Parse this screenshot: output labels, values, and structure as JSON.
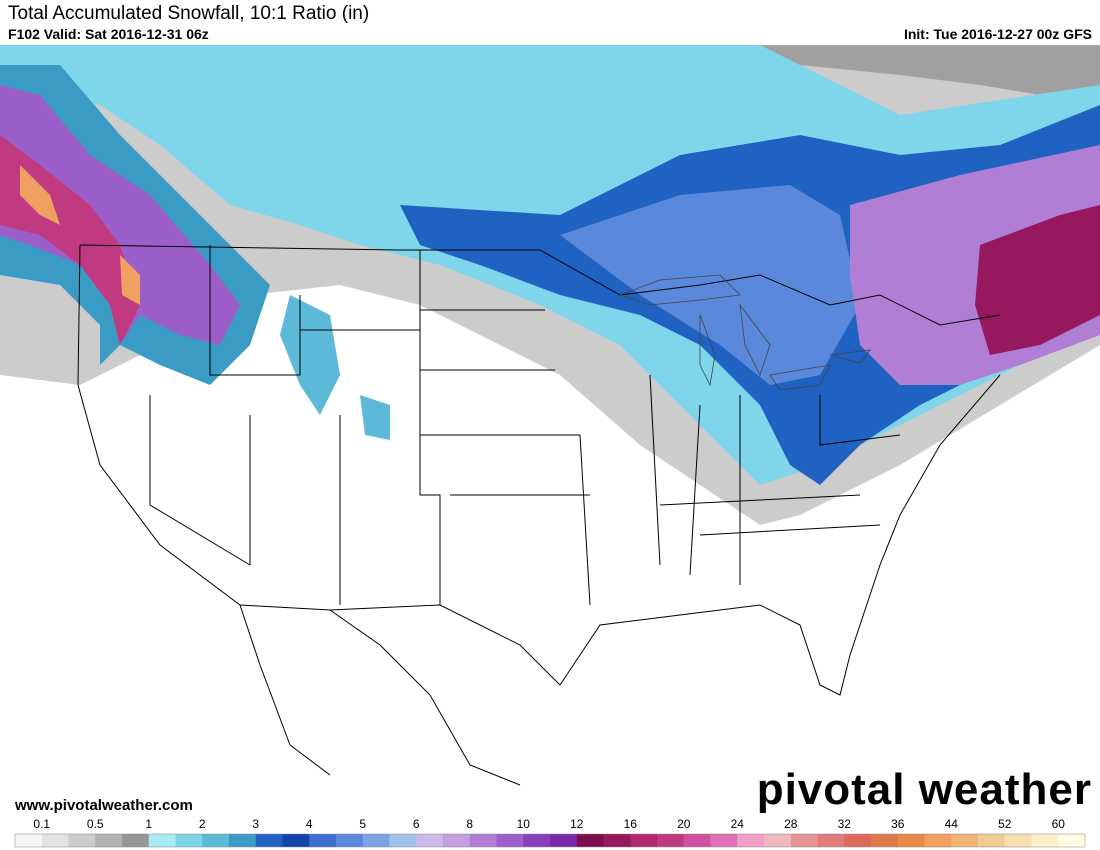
{
  "header": {
    "title": "Total Accumulated Snowfall, 10:1 Ratio (in)",
    "valid": "F102 Valid: Sat 2016-12-31 06z",
    "init": "Init: Tue 2016-12-27 00z GFS"
  },
  "footer": {
    "website": "www.pivotalweather.com",
    "logo": "pivotal weather"
  },
  "legend": {
    "ticks": [
      0.1,
      0.5,
      1,
      2,
      3,
      4,
      5,
      6,
      8,
      10,
      12,
      16,
      20,
      24,
      28,
      32,
      36,
      44,
      52,
      60
    ],
    "colors": [
      "#f5f5f5",
      "#e3e3e3",
      "#cccccc",
      "#b2b2b2",
      "#969696",
      "#a6ecf5",
      "#7fd6ea",
      "#5cbad8",
      "#3a9cc4",
      "#1f62c2",
      "#1444aa",
      "#3d6fd0",
      "#5a88da",
      "#7ca3e2",
      "#a3c0ea",
      "#cdb8ea",
      "#c49ee0",
      "#b07ed4",
      "#9c5ec8",
      "#8a40b8",
      "#7a2aa8",
      "#7a0e4e",
      "#96185e",
      "#b02870",
      "#c03a82",
      "#d050a0",
      "#e070b8",
      "#f0a0c8",
      "#f2b8c0",
      "#e89494",
      "#e07c7c",
      "#e06a5a",
      "#e07a4a",
      "#e88a48",
      "#f0a060",
      "#f0b474",
      "#f2ca94",
      "#f8dfb0",
      "#fcefc8",
      "#fffbe4"
    ]
  }
}
